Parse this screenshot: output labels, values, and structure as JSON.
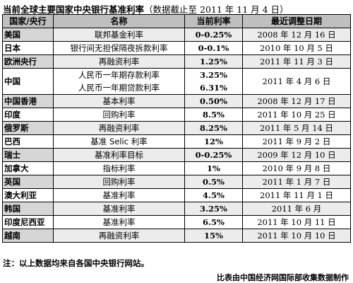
{
  "title": {
    "main": "当前全球主要国家中央银行基准利率",
    "sub": "（数据截止至 2011 年 11 月 4 日）"
  },
  "table": {
    "headers": [
      "国家/央行",
      "名称",
      "当前利率",
      "最近调整日期"
    ],
    "rows": [
      {
        "country": "美国",
        "names": [
          "联邦基金利率"
        ],
        "rates": [
          "0-0.25%"
        ],
        "date": "2008 年 12 月 16 日"
      },
      {
        "country": "日本",
        "names": [
          "银行间无担保隔夜拆款利率"
        ],
        "rates": [
          "0-0.1%"
        ],
        "date": "2010 年 10 月 5 日"
      },
      {
        "country": "欧洲央行",
        "names": [
          "再融资利率"
        ],
        "rates": [
          "1.25%"
        ],
        "date": "2011 年 11 月 3 日"
      },
      {
        "country": "中国",
        "names": [
          "人民币一年期存款利率",
          "人民币一年期贷款利率"
        ],
        "rates": [
          "3.25%",
          "6.31%"
        ],
        "date": "2011 年 4 月 6 日"
      },
      {
        "country": "中国香港",
        "names": [
          "基本利率"
        ],
        "rates": [
          "0.50%"
        ],
        "date": "2008 年 12 月 17 日"
      },
      {
        "country": "印度",
        "names": [
          "回购利率"
        ],
        "rates": [
          "8.5%"
        ],
        "date": "2011 年 10 月 25 日"
      },
      {
        "country": "俄罗斯",
        "names": [
          "再融资利率"
        ],
        "rates": [
          "8.25%"
        ],
        "date": "2011 年 5 月 14 日"
      },
      {
        "country": "巴西",
        "names": [
          "基准 Selic 利率"
        ],
        "rates": [
          "12%"
        ],
        "date": "2011 年 9 月 2 日"
      },
      {
        "country": "瑞士",
        "names": [
          "基准利率目标"
        ],
        "rates": [
          "0-0.25%"
        ],
        "date": "2009 年 12 月 10 日"
      },
      {
        "country": "加拿大",
        "names": [
          "指标利率"
        ],
        "rates": [
          "1%"
        ],
        "date": "2010 年 9 月 8 日"
      },
      {
        "country": "英国",
        "names": [
          "回购利率"
        ],
        "rates": [
          "0.5%"
        ],
        "date": "2011 年 1 月 7 日"
      },
      {
        "country": "澳大利亚",
        "names": [
          "基准利率"
        ],
        "rates": [
          "4.5%"
        ],
        "date": "2011 年 11 月 1 日"
      },
      {
        "country": "韩国",
        "names": [
          "基准利率"
        ],
        "rates": [
          "3.25%"
        ],
        "date": "2011 年 6 月"
      },
      {
        "country": "印度尼西亚",
        "names": [
          "基准利率"
        ],
        "rates": [
          "6.5%"
        ],
        "date": "2011 年 10 月 11 日"
      },
      {
        "country": "越南",
        "names": [
          "再融资利率"
        ],
        "rates": [
          "15%"
        ],
        "date": "2011 年 10 月 10 日"
      }
    ]
  },
  "footer": {
    "note": "注：以上数据均来自各国中央银行网站。",
    "credit": "比表由中国经济网国际部收集数据制作"
  }
}
